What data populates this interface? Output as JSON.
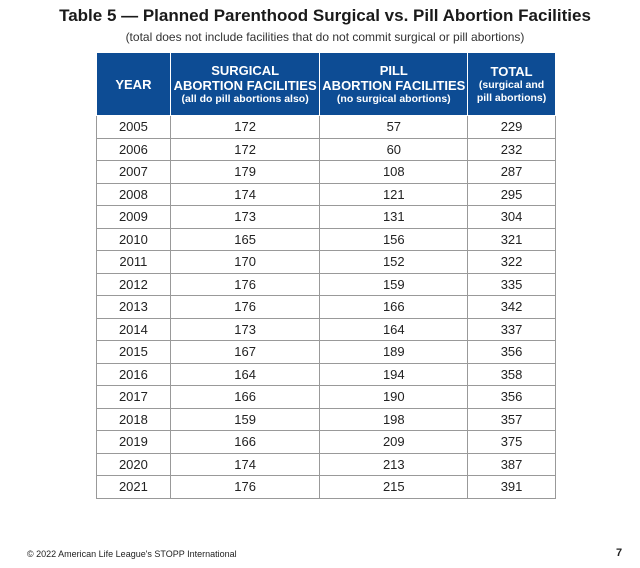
{
  "header": {
    "title": "Table 5 — Planned Parenthood Surgical vs. Pill Abortion Facilities",
    "subtitle": "(total does not include facilities that do not commit surgical or pill abortions)"
  },
  "table": {
    "columns": [
      {
        "lines": [
          "YEAR"
        ],
        "note": []
      },
      {
        "lines": [
          "SURGICAL",
          "ABORTION FACILITIES"
        ],
        "note": [
          "(all do pill abortions also)"
        ]
      },
      {
        "lines": [
          "PILL",
          "ABORTION FACILITIES"
        ],
        "note": [
          "(no surgical abortions)"
        ]
      },
      {
        "lines": [
          "TOTAL"
        ],
        "note": [
          "(surgical and",
          "pill abortions)"
        ]
      }
    ],
    "rows": [
      [
        2005,
        172,
        57,
        229
      ],
      [
        2006,
        172,
        60,
        232
      ],
      [
        2007,
        179,
        108,
        287
      ],
      [
        2008,
        174,
        121,
        295
      ],
      [
        2009,
        173,
        131,
        304
      ],
      [
        2010,
        165,
        156,
        321
      ],
      [
        2011,
        170,
        152,
        322
      ],
      [
        2012,
        176,
        159,
        335
      ],
      [
        2013,
        176,
        166,
        342
      ],
      [
        2014,
        173,
        164,
        337
      ],
      [
        2015,
        167,
        189,
        356
      ],
      [
        2016,
        164,
        194,
        358
      ],
      [
        2017,
        166,
        190,
        356
      ],
      [
        2018,
        159,
        198,
        357
      ],
      [
        2019,
        166,
        209,
        375
      ],
      [
        2020,
        174,
        213,
        387
      ],
      [
        2021,
        176,
        215,
        391
      ]
    ]
  },
  "footer": {
    "copyright": "© 2022 American Life League's STOPP International",
    "page": "7"
  }
}
